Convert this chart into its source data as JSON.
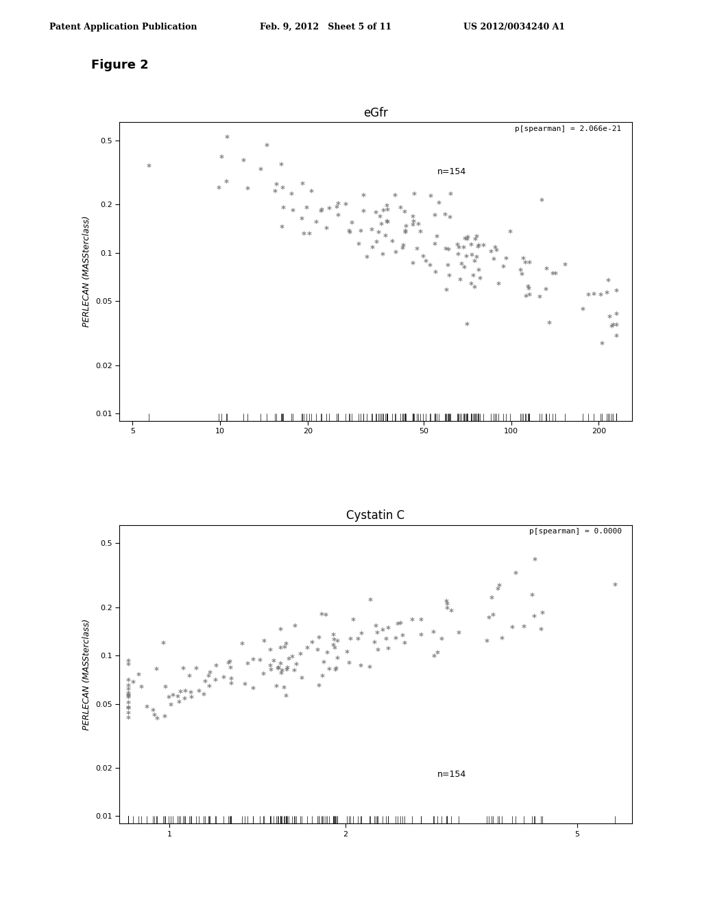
{
  "header_left": "Patent Application Publication",
  "header_mid": "Feb. 9, 2012   Sheet 5 of 11",
  "header_right": "US 2012/0034240 A1",
  "figure_label": "Figure 2",
  "plot1": {
    "title": "eGfr",
    "ylabel": "PERLECAN (MASSterclass)",
    "annotation1": "p[spearman] = 2.066e-21",
    "annotation2": "n=154",
    "xlim_log": [
      4.5,
      260
    ],
    "ylim_log": [
      0.009,
      0.65
    ],
    "xticks": [
      5,
      10,
      20,
      50,
      100,
      200
    ],
    "yticks": [
      0.01,
      0.02,
      0.05,
      0.1,
      0.2,
      0.5
    ],
    "seed": 42,
    "n": 154
  },
  "plot2": {
    "title": "Cystatin C",
    "ylabel": "PERLECAN (MASSterclass)",
    "annotation1": "p[spearman] = 0.0000",
    "annotation2": "n=154",
    "xlim_log": [
      0.82,
      6.2
    ],
    "ylim_log": [
      0.009,
      0.65
    ],
    "xticks": [
      1,
      2,
      5
    ],
    "yticks": [
      0.01,
      0.02,
      0.05,
      0.1,
      0.2,
      0.5
    ],
    "seed": 77,
    "n": 154
  },
  "marker_color": "#777777",
  "marker_size": 18,
  "font_size_title": 12,
  "font_size_annotation": 8,
  "font_size_axis_label": 9,
  "font_size_tick": 8,
  "background_color": "#ffffff",
  "header_fontsize": 9,
  "figure_label_fontsize": 13
}
